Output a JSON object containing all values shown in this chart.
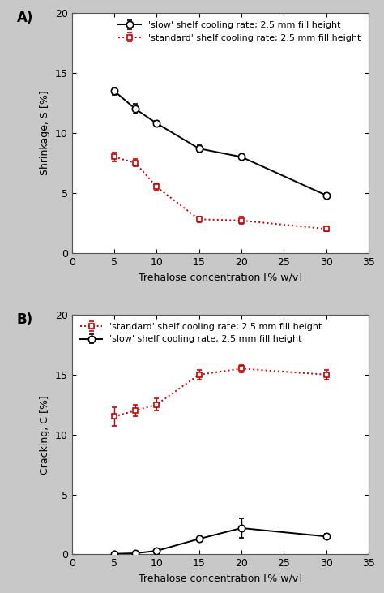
{
  "panel_A": {
    "slow_x": [
      5,
      7.5,
      10,
      15,
      20,
      30
    ],
    "slow_y": [
      13.5,
      12.0,
      10.8,
      8.7,
      8.0,
      4.8
    ],
    "slow_yerr": [
      0.3,
      0.4,
      0.2,
      0.3,
      0.15,
      0.2
    ],
    "standard_x": [
      5,
      7.5,
      10,
      15,
      20,
      30
    ],
    "standard_y": [
      8.0,
      7.5,
      5.5,
      2.8,
      2.7,
      2.0
    ],
    "standard_yerr": [
      0.35,
      0.3,
      0.3,
      0.25,
      0.3,
      0.2
    ],
    "ylabel": "Shrinkage, S [%]",
    "xlabel": "Trehalose concentration [% w/v]",
    "ylim": [
      0,
      20
    ],
    "xlim": [
      0,
      35
    ],
    "label_A": "A)",
    "legend_slow": "'slow' shelf cooling rate; 2.5 mm fill height",
    "legend_standard": "'standard' shelf cooling rate; 2.5 mm fill height"
  },
  "panel_B": {
    "slow_x": [
      5,
      7.5,
      10,
      15,
      20,
      30
    ],
    "slow_y": [
      0.05,
      0.1,
      0.3,
      1.3,
      2.2,
      1.5
    ],
    "slow_yerr": [
      0.05,
      0.05,
      0.1,
      0.15,
      0.8,
      0.2
    ],
    "standard_x": [
      5,
      7.5,
      10,
      15,
      20,
      30
    ],
    "standard_y": [
      11.5,
      12.0,
      12.5,
      15.0,
      15.5,
      15.0
    ],
    "standard_yerr": [
      0.8,
      0.5,
      0.5,
      0.4,
      0.3,
      0.4
    ],
    "ylabel": "Cracking, C [%]",
    "xlabel": "Trehalose concentration [% w/v]",
    "ylim": [
      0,
      20
    ],
    "xlim": [
      0,
      35
    ],
    "label_B": "B)",
    "legend_slow": "'slow' shelf cooling rate; 2.5 mm fill height",
    "legend_standard": "'standard' shelf cooling rate; 2.5 mm fill height"
  },
  "slow_color": "#000000",
  "standard_color": "#cc0000",
  "slow_linestyle": "-",
  "standard_linestyle": ":",
  "slow_marker": "o",
  "standard_marker": "s",
  "slow_markersize": 6,
  "standard_markersize": 5,
  "linewidth": 1.4,
  "fontsize_label": 9,
  "fontsize_tick": 9,
  "fontsize_legend": 8,
  "fontsize_panel": 12,
  "fig_bg_color": "#c8c8c8",
  "axes_bg_color": "#ffffff",
  "xticks": [
    0,
    5,
    10,
    15,
    20,
    25,
    30,
    35
  ]
}
